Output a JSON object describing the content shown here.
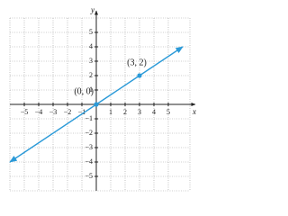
{
  "chart_data": {
    "type": "line",
    "x_label": "x",
    "y_label": "y",
    "x": [
      -6,
      0,
      3,
      6
    ],
    "series": [
      {
        "color": "#2b9ad8",
        "values": [
          -4,
          0,
          2,
          4
        ]
      }
    ],
    "annotations": [
      {
        "text": "(0, 0)",
        "x": 0,
        "y": 0
      },
      {
        "text": "(3, 2)",
        "x": 3,
        "y": 2
      }
    ],
    "xlim": [
      -6,
      6.5
    ],
    "ylim": [
      -6,
      6
    ],
    "xticks": [
      {
        "value": -5,
        "label": "−5"
      },
      {
        "value": -4,
        "label": "−4"
      },
      {
        "value": -3,
        "label": "−3"
      },
      {
        "value": -2,
        "label": "−2"
      },
      {
        "value": -1,
        "label": "−1"
      },
      1,
      2,
      3,
      4,
      5
    ],
    "yticks": [
      {
        "value": -5,
        "label": "−5"
      },
      {
        "value": -4,
        "label": "−4"
      },
      {
        "value": -3,
        "label": "−3"
      },
      {
        "value": -2,
        "label": "−2"
      },
      {
        "value": -1,
        "label": "−1"
      },
      1,
      2,
      3,
      4,
      5
    ],
    "grid": true
  }
}
